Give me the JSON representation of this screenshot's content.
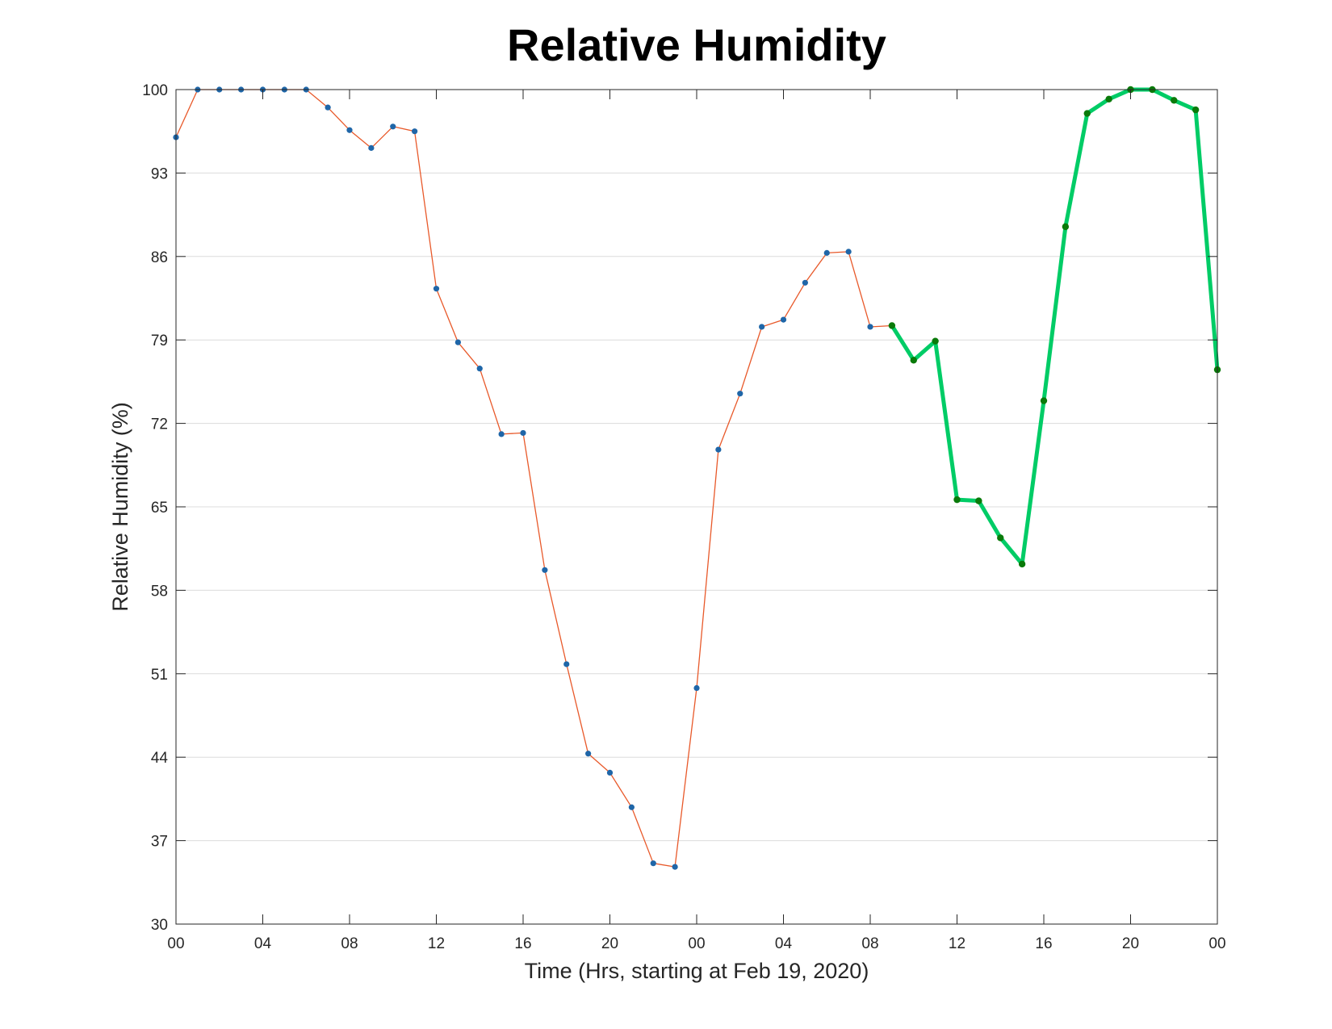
{
  "chart_data": {
    "type": "line",
    "title": "Relative Humidity",
    "xlabel": "Time (Hrs, starting at Feb 19, 2020)",
    "ylabel": "Relative Humidity (%)",
    "ylim": [
      30,
      100
    ],
    "xlim": [
      "2020-02-19 00:00",
      "2020-02-21 00:00"
    ],
    "yticks": [
      30,
      37,
      44,
      51,
      58,
      65,
      72,
      79,
      86,
      93,
      100
    ],
    "ytick_labels": [
      "30",
      "37",
      "44",
      "51",
      "58",
      "65",
      "72",
      "79",
      "86",
      "93",
      "100"
    ],
    "xticks": [
      "2020-02-19 00:00",
      "2020-02-19 04:00",
      "2020-02-19 08:00",
      "2020-02-19 12:00",
      "2020-02-19 16:00",
      "2020-02-19 20:00",
      "2020-02-20 00:00",
      "2020-02-20 04:00",
      "2020-02-20 08:00",
      "2020-02-20 12:00",
      "2020-02-20 16:00",
      "2020-02-20 20:00",
      "2020-02-21 00:00"
    ],
    "xtick_labels": [
      "00",
      "04",
      "08",
      "12",
      "16",
      "20",
      "00",
      "04",
      "08",
      "12",
      "16",
      "20",
      "00"
    ],
    "grid": "horizontal",
    "series": [
      {
        "line_color": "#e8592a",
        "marker_color": "#1f66a8",
        "line_style": "thin",
        "x": [
          "2020-02-19 00:00",
          "2020-02-19 01:00",
          "2020-02-19 02:00",
          "2020-02-19 03:00",
          "2020-02-19 04:00",
          "2020-02-19 05:00",
          "2020-02-19 06:00",
          "2020-02-19 07:00",
          "2020-02-19 08:00",
          "2020-02-19 09:00",
          "2020-02-19 10:00",
          "2020-02-19 11:00",
          "2020-02-19 12:00",
          "2020-02-19 13:00",
          "2020-02-19 14:00",
          "2020-02-19 15:00",
          "2020-02-19 16:00",
          "2020-02-19 17:00",
          "2020-02-19 18:00",
          "2020-02-19 19:00",
          "2020-02-19 20:00",
          "2020-02-19 21:00",
          "2020-02-19 22:00",
          "2020-02-19 23:00",
          "2020-02-20 00:00",
          "2020-02-20 01:00",
          "2020-02-20 02:00",
          "2020-02-20 03:00",
          "2020-02-20 04:00",
          "2020-02-20 05:00",
          "2020-02-20 06:00",
          "2020-02-20 07:00",
          "2020-02-20 08:00",
          "2020-02-20 09:00"
        ],
        "y": [
          96,
          100,
          100,
          100,
          100,
          100,
          100,
          98.5,
          96.6,
          95.1,
          96.9,
          96.5,
          83.3,
          78.8,
          76.6,
          71.1,
          71.2,
          59.7,
          51.8,
          44.3,
          42.7,
          39.8,
          35.1,
          34.8,
          49.8,
          69.8,
          74.5,
          80.1,
          80.7,
          83.8,
          86.3,
          86.4,
          80.1,
          80.2
        ]
      },
      {
        "line_color": "#00cc66",
        "marker_color": "#0a7a0a",
        "line_style": "thick",
        "x": [
          "2020-02-20 09:00",
          "2020-02-20 10:00",
          "2020-02-20 11:00",
          "2020-02-20 12:00",
          "2020-02-20 13:00",
          "2020-02-20 14:00",
          "2020-02-20 15:00",
          "2020-02-20 16:00",
          "2020-02-20 17:00",
          "2020-02-20 18:00",
          "2020-02-20 19:00",
          "2020-02-20 20:00",
          "2020-02-20 21:00",
          "2020-02-20 22:00",
          "2020-02-20 23:00",
          "2020-02-21 00:00"
        ],
        "y": [
          80.2,
          77.3,
          78.9,
          65.6,
          65.5,
          62.4,
          60.2,
          73.9,
          88.5,
          98,
          99.2,
          100,
          100,
          99.1,
          98.3,
          76.5
        ]
      }
    ]
  }
}
